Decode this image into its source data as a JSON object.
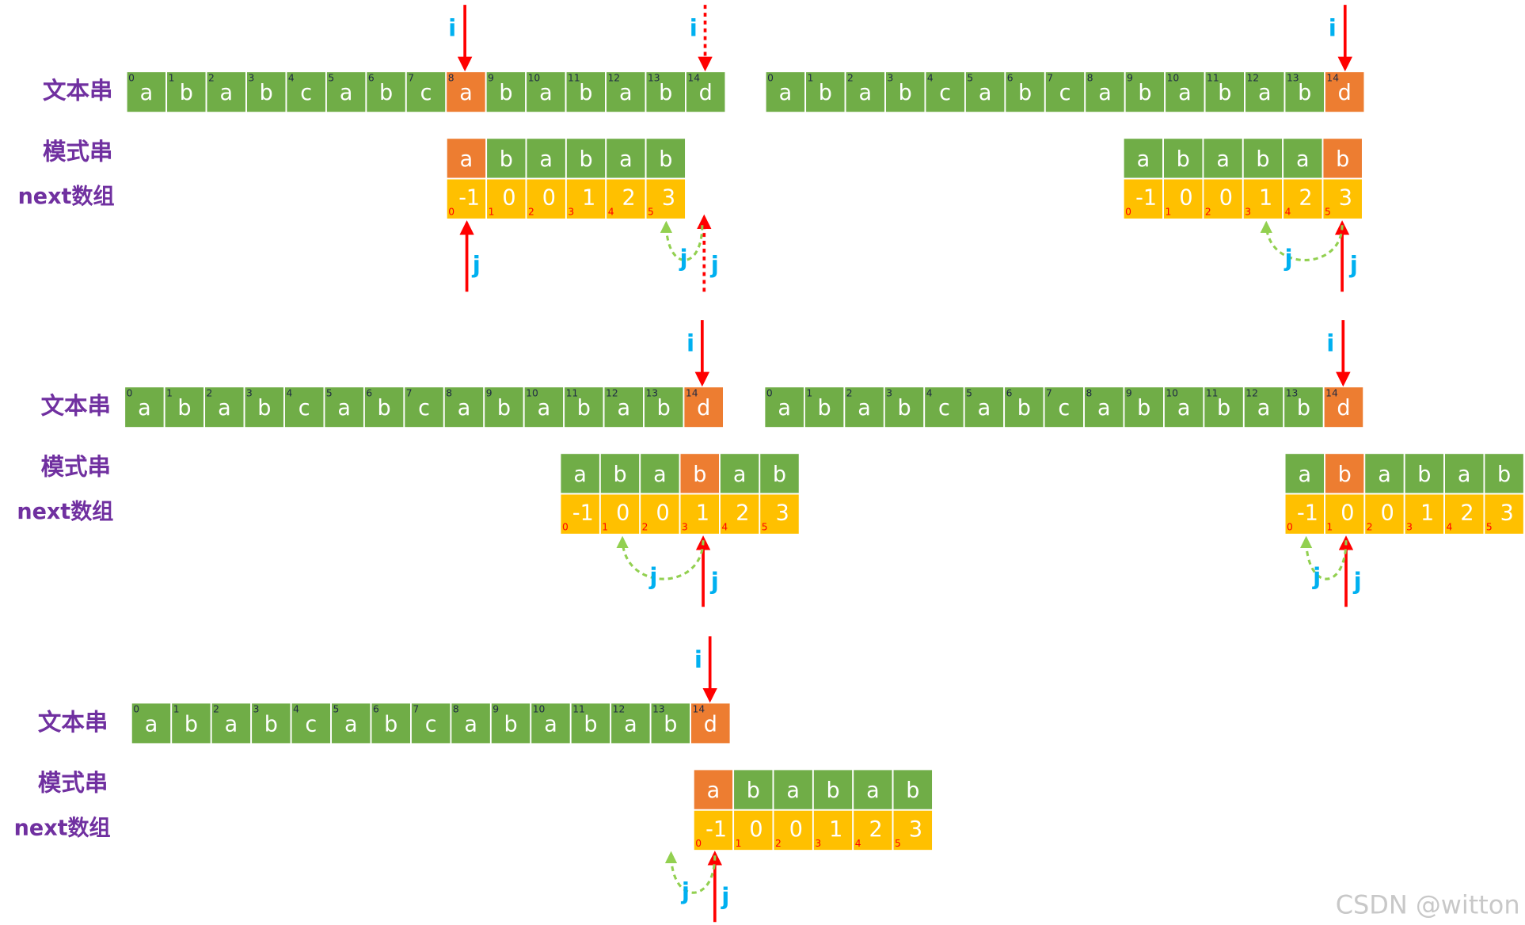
{
  "panels": [
    {
      "text_label": "文本串",
      "pattern_label": "模式串",
      "next_label": "next数组",
      "text": [
        "a",
        "b",
        "a",
        "b",
        "c",
        "a",
        "b",
        "c",
        "a",
        "b",
        "a",
        "b",
        "a",
        "b",
        "d"
      ],
      "text_index": [
        0,
        1,
        2,
        3,
        4,
        5,
        6,
        7,
        8,
        9,
        10,
        11,
        12,
        13,
        14
      ],
      "pattern": [
        "a",
        "b",
        "a",
        "b",
        "a",
        "b"
      ],
      "next": [
        -1,
        0,
        0,
        1,
        2,
        3
      ],
      "pattern_index": [
        0,
        1,
        2,
        3,
        4,
        5
      ],
      "i_labels": [
        "i",
        "i"
      ],
      "j_labels": [
        "j",
        "j",
        "j"
      ]
    },
    {
      "text": [
        "a",
        "b",
        "a",
        "b",
        "c",
        "a",
        "b",
        "c",
        "a",
        "b",
        "a",
        "b",
        "a",
        "b",
        "d"
      ],
      "text_index": [
        0,
        1,
        2,
        3,
        4,
        5,
        6,
        7,
        8,
        9,
        10,
        11,
        12,
        13,
        14
      ],
      "pattern": [
        "a",
        "b",
        "a",
        "b",
        "a",
        "b"
      ],
      "next": [
        -1,
        0,
        0,
        1,
        2,
        3
      ],
      "pattern_index": [
        0,
        1,
        2,
        3,
        4,
        5
      ],
      "i_labels": [
        "i"
      ],
      "j_labels": [
        "j",
        "j"
      ]
    },
    {
      "text_label": "文本串",
      "pattern_label": "模式串",
      "next_label": "next数组",
      "text": [
        "a",
        "b",
        "a",
        "b",
        "c",
        "a",
        "b",
        "c",
        "a",
        "b",
        "a",
        "b",
        "a",
        "b",
        "d"
      ],
      "text_index": [
        0,
        1,
        2,
        3,
        4,
        5,
        6,
        7,
        8,
        9,
        10,
        11,
        12,
        13,
        14
      ],
      "pattern": [
        "a",
        "b",
        "a",
        "b",
        "a",
        "b"
      ],
      "next": [
        -1,
        0,
        0,
        1,
        2,
        3
      ],
      "pattern_index": [
        0,
        1,
        2,
        3,
        4,
        5
      ],
      "i_labels": [
        "i"
      ],
      "j_labels": [
        "j",
        "j"
      ]
    },
    {
      "text": [
        "a",
        "b",
        "a",
        "b",
        "c",
        "a",
        "b",
        "c",
        "a",
        "b",
        "a",
        "b",
        "a",
        "b",
        "d"
      ],
      "text_index": [
        0,
        1,
        2,
        3,
        4,
        5,
        6,
        7,
        8,
        9,
        10,
        11,
        12,
        13,
        14
      ],
      "pattern": [
        "a",
        "b",
        "a",
        "b",
        "a",
        "b"
      ],
      "next": [
        -1,
        0,
        0,
        1,
        2,
        3
      ],
      "pattern_index": [
        0,
        1,
        2,
        3,
        4,
        5
      ],
      "i_labels": [
        "i"
      ],
      "j_labels": [
        "j",
        "j"
      ]
    },
    {
      "text_label": "文本串",
      "pattern_label": "模式串",
      "next_label": "next数组",
      "text": [
        "a",
        "b",
        "a",
        "b",
        "c",
        "a",
        "b",
        "c",
        "a",
        "b",
        "a",
        "b",
        "a",
        "b",
        "d"
      ],
      "text_index": [
        0,
        1,
        2,
        3,
        4,
        5,
        6,
        7,
        8,
        9,
        10,
        11,
        12,
        13,
        14
      ],
      "pattern": [
        "a",
        "b",
        "a",
        "b",
        "a",
        "b"
      ],
      "next": [
        -1,
        0,
        0,
        1,
        2,
        3
      ],
      "pattern_index": [
        0,
        1,
        2,
        3,
        4,
        5
      ],
      "i_labels": [
        "i"
      ],
      "j_labels": [
        "j",
        "j"
      ]
    }
  ],
  "watermark": "CSDN @witton"
}
